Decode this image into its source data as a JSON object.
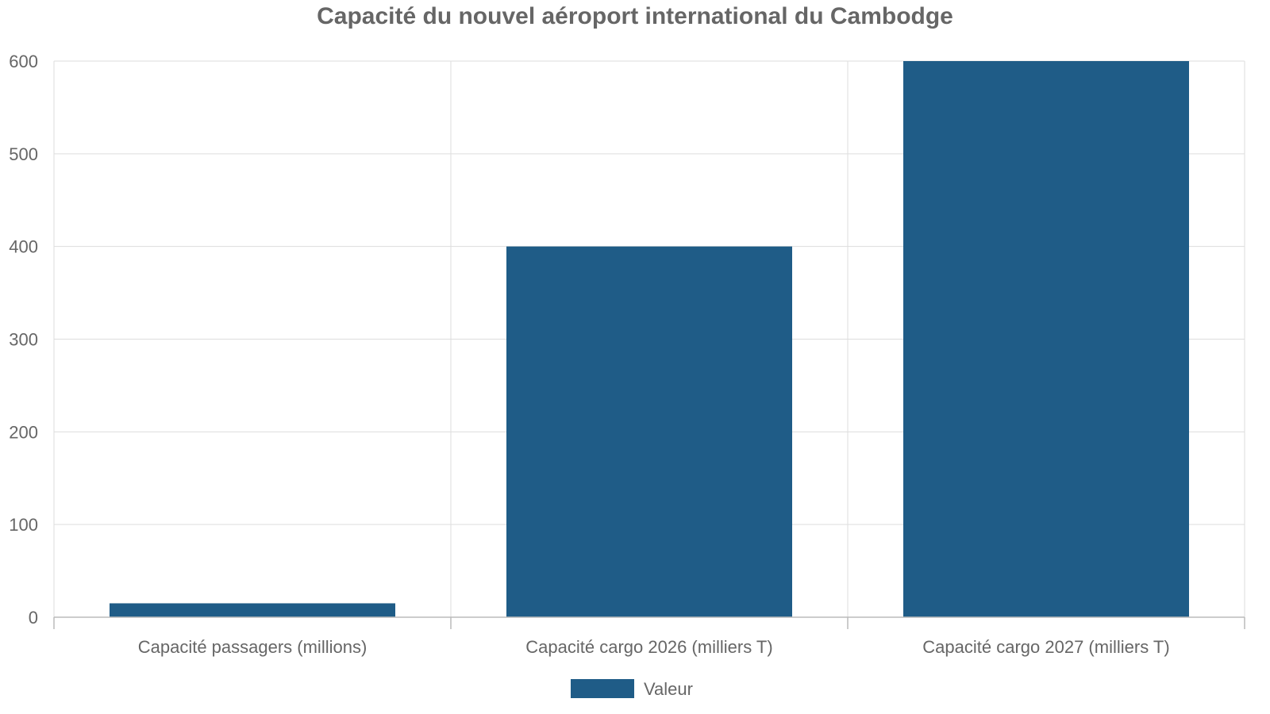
{
  "chart_data": {
    "type": "bar",
    "title": "Capacité du nouvel aéroport international du Cambodge",
    "categories": [
      "Capacité passagers (millions)",
      "Capacité cargo 2026 (milliers T)",
      "Capacité cargo 2027 (milliers T)"
    ],
    "series": [
      {
        "name": "Valeur",
        "values": [
          15,
          400,
          600
        ],
        "color": "#1f5c87"
      }
    ],
    "xlabel": "",
    "ylabel": "",
    "ylim": [
      0,
      600
    ],
    "yticks": [
      0,
      100,
      200,
      300,
      400,
      500,
      600
    ],
    "grid": true,
    "legend_position": "bottom-center"
  }
}
